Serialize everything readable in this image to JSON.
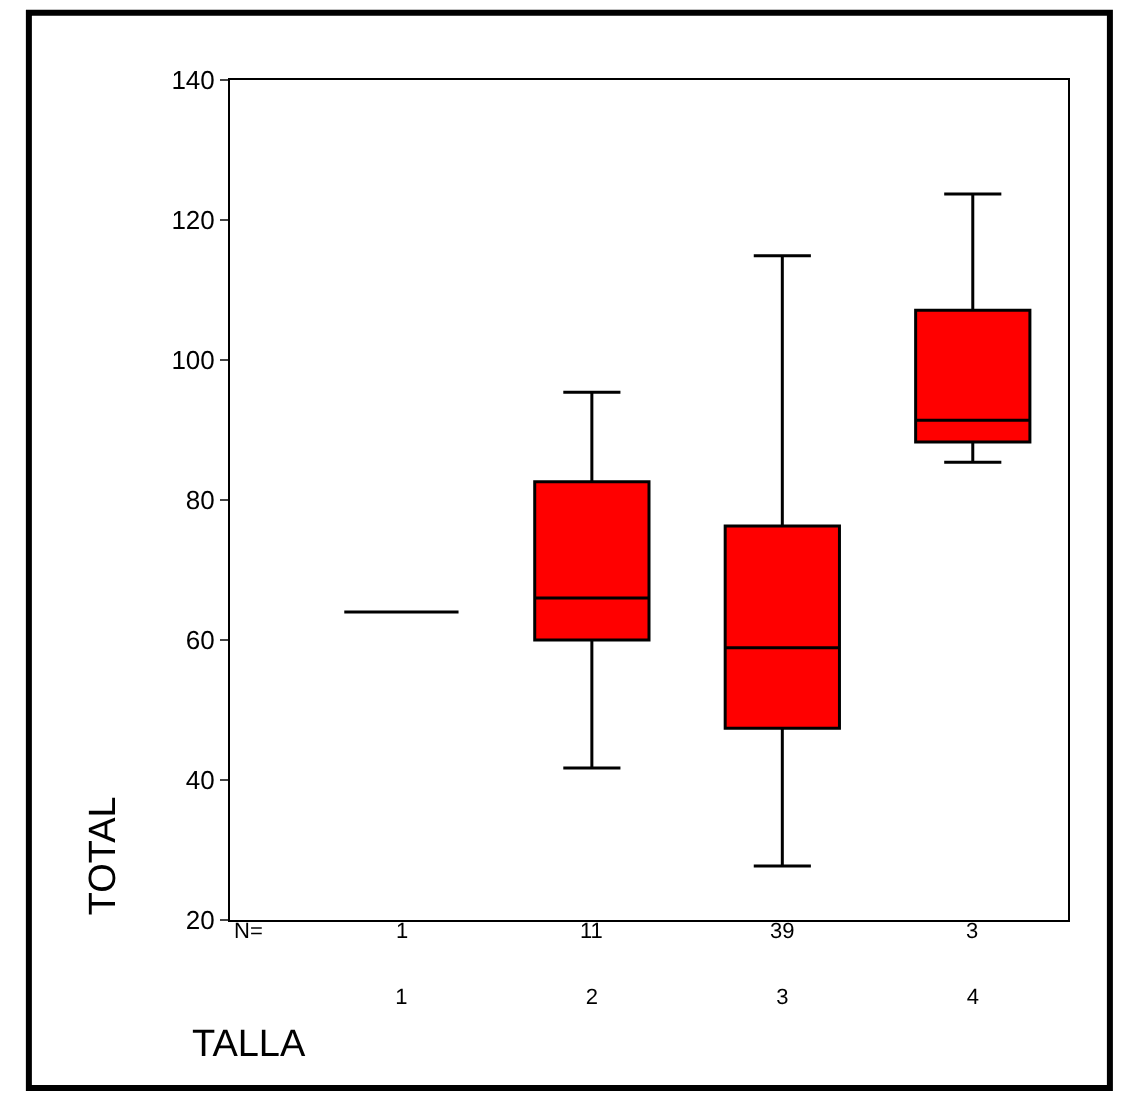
{
  "chart_data": {
    "type": "box",
    "xlabel": "TALLA",
    "ylabel": "TOTAL",
    "categories": [
      "1",
      "2",
      "3",
      "4"
    ],
    "boxes": [
      {
        "low": 64,
        "q1": 64,
        "median": 64,
        "q3": 64,
        "high": 64
      },
      {
        "low": 41.7,
        "q1": 60,
        "median": 66,
        "q3": 82.6,
        "high": 95.4
      },
      {
        "low": 27.7,
        "q1": 47.4,
        "median": 58.9,
        "q3": 76.3,
        "high": 114.9
      },
      {
        "low": 85.4,
        "q1": 88.3,
        "median": 91.4,
        "q3": 107.1,
        "high": 123.7
      }
    ],
    "colors": [
      "#000000",
      "#ff0000",
      "#ff0000",
      "#ff0000"
    ],
    "ylim": [
      20,
      140
    ],
    "yticks": [
      20,
      40,
      60,
      80,
      100,
      120,
      140
    ],
    "annotations": [
      "N=",
      "1",
      "11",
      "39",
      "3"
    ]
  }
}
